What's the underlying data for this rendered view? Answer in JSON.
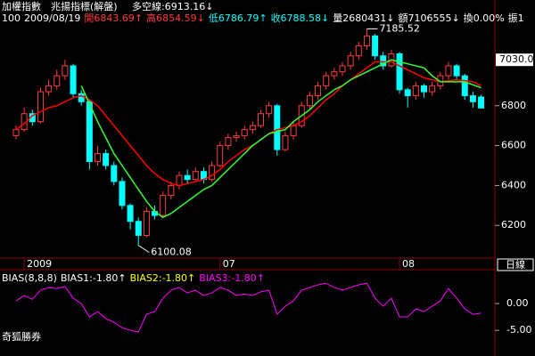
{
  "chart_data": [
    {
      "type": "candlestick",
      "title": "加權指數",
      "subtitle": "兆揚指標(解盤)",
      "annotation": "多空線:6913.16↓",
      "info": [
        {
          "text": "100",
          "color": "#ffffff"
        },
        {
          "text": "2009/08/19",
          "color": "#ffffff"
        },
        {
          "text": "開6843.69↑",
          "color": "#ff3c3c"
        },
        {
          "text": "高6854.59↓",
          "color": "#ff3c3c"
        },
        {
          "text": "低6786.79↑",
          "color": "#00ffff"
        },
        {
          "text": "收6788.58↓",
          "color": "#00ffff"
        },
        {
          "text": "量2680431↓",
          "color": "#ffffff"
        },
        {
          "text": "額7106555↓",
          "color": "#ffffff"
        },
        {
          "text": "換0.00%",
          "color": "#ffffff"
        },
        {
          "text": "振1",
          "color": "#ffffff"
        }
      ],
      "categories": [
        null,
        "2009",
        null,
        null,
        null,
        null,
        null,
        null,
        null,
        null,
        null,
        null,
        null,
        null,
        null,
        null,
        null,
        null,
        null,
        null,
        null,
        null,
        null,
        null,
        null,
        "07",
        null,
        null,
        null,
        null,
        null,
        null,
        null,
        null,
        null,
        null,
        null,
        null,
        null,
        null,
        null,
        null,
        null,
        null,
        null,
        null,
        null,
        "08",
        null,
        null,
        null,
        null,
        null,
        null,
        null,
        null,
        null,
        null
      ],
      "open": [
        6650,
        6680,
        6760,
        6720,
        6870,
        6900,
        6950,
        7000,
        6860,
        6820,
        6520,
        6560,
        6500,
        6420,
        6300,
        6220,
        6150,
        6270,
        6250,
        6350,
        6400,
        6450,
        6430,
        6470,
        6430,
        6500,
        6600,
        6640,
        6650,
        6680,
        6700,
        6760,
        6800,
        6580,
        6650,
        6700,
        6800,
        6850,
        6900,
        6950,
        6970,
        7000,
        7050,
        7100,
        7150,
        7050,
        7000,
        7060,
        6880,
        6850,
        6900,
        6870,
        6900,
        6950,
        7000,
        6950,
        6850,
        6843.69
      ],
      "high": [
        6700,
        6790,
        6780,
        6890,
        6930,
        6980,
        7030,
        7010,
        6880,
        6830,
        6600,
        6580,
        6520,
        6440,
        6310,
        6240,
        6290,
        6300,
        6370,
        6420,
        6470,
        6480,
        6490,
        6490,
        6520,
        6620,
        6660,
        6670,
        6700,
        6720,
        6780,
        6820,
        6810,
        6670,
        6720,
        6820,
        6870,
        6920,
        6970,
        6990,
        7020,
        7070,
        7120,
        7185.52,
        7160,
        7070,
        7080,
        7070,
        6890,
        6920,
        6910,
        6920,
        6970,
        7020,
        7010,
        6960,
        6870,
        6854.59
      ],
      "low": [
        6630,
        6670,
        6700,
        6710,
        6850,
        6880,
        6930,
        6840,
        6800,
        6480,
        6500,
        6480,
        6400,
        6280,
        6180,
        6100.08,
        6140,
        6230,
        6240,
        6330,
        6380,
        6410,
        6420,
        6410,
        6420,
        6490,
        6580,
        6620,
        6630,
        6660,
        6690,
        6740,
        6550,
        6570,
        6630,
        6690,
        6780,
        6830,
        6880,
        6930,
        6950,
        6980,
        7030,
        7080,
        7030,
        6980,
        6990,
        6860,
        6790,
        6830,
        6840,
        6850,
        6880,
        6930,
        6930,
        6830,
        6790,
        6786.79
      ],
      "close": [
        6680,
        6760,
        6720,
        6870,
        6900,
        6950,
        7000,
        6860,
        6820,
        6520,
        6560,
        6500,
        6420,
        6300,
        6220,
        6150,
        6270,
        6250,
        6350,
        6400,
        6450,
        6430,
        6470,
        6430,
        6500,
        6600,
        6640,
        6650,
        6680,
        6700,
        6760,
        6800,
        6580,
        6650,
        6700,
        6800,
        6850,
        6900,
        6950,
        6970,
        7000,
        7050,
        7100,
        7150,
        7050,
        7000,
        7060,
        6880,
        6850,
        6900,
        6870,
        6900,
        6950,
        7000,
        6950,
        6850,
        6820,
        6788.58
      ],
      "up_color": "#ff3c3c",
      "down_color": "#00ffff",
      "lines": [
        {
          "color": "#ff0000",
          "values": [
            6680,
            6710,
            6750,
            6770,
            6790,
            6800,
            6820,
            6840,
            6850,
            6830,
            6800,
            6750,
            6700,
            6650,
            6600,
            6550,
            6500,
            6460,
            6430,
            6410,
            6400,
            6410,
            6420,
            6430,
            6450,
            6480,
            6520,
            6550,
            6580,
            6600,
            6630,
            6660,
            6680,
            6690,
            6700,
            6720,
            6750,
            6790,
            6830,
            6860,
            6900,
            6930,
            6960,
            6990,
            7020,
            7020,
            7020,
            7000,
            6980,
            6960,
            6940,
            6930,
            6920,
            6925,
            6930,
            6925,
            6920,
            6900
          ]
        },
        {
          "color": "#33ff33",
          "values": [
            null,
            null,
            null,
            null,
            null,
            null,
            null,
            null,
            6900,
            6810,
            6720,
            6640,
            6560,
            6500,
            6440,
            6380,
            6320,
            6270,
            6240,
            6260,
            6290,
            6320,
            6350,
            6380,
            6400,
            6440,
            6480,
            6520,
            6560,
            6600,
            6630,
            6660,
            6670,
            6680,
            6720,
            6750,
            6780,
            6820,
            6850,
            6880,
            6900,
            6930,
            6950,
            6970,
            6990,
            7010,
            7030,
            7020,
            7010,
            7000,
            6990,
            6950,
            6920,
            6920,
            6920,
            6920,
            6905,
            6890
          ]
        }
      ],
      "ylim": [
        6036,
        7205
      ],
      "yticks": [
        6200,
        6400,
        6600,
        6800
      ],
      "cursor_label": {
        "value": 7030,
        "label": "7030.0"
      },
      "period_label": "日線"
    },
    {
      "type": "line",
      "title": "BIAS(8,8,8)",
      "legend": [
        {
          "text": "BIAS1:-1.80↑",
          "color": "#ffffff"
        },
        {
          "text": "BIAS2:-1.80↑",
          "color": "#ffff00"
        },
        {
          "text": "BIAS3:-1.80↑",
          "color": "#ff00ff"
        }
      ],
      "series": [
        {
          "color": "#ff00ff",
          "values": [
            0.5,
            1.5,
            0.8,
            2.5,
            3.0,
            2.8,
            3.2,
            1.0,
            0.0,
            -2.5,
            -1.5,
            -2.8,
            -3.5,
            -4.5,
            -5.0,
            -5.3,
            -2.0,
            -1.5,
            1.0,
            2.5,
            3.0,
            2.0,
            2.5,
            1.5,
            2.0,
            3.0,
            2.5,
            1.5,
            1.8,
            1.5,
            2.2,
            2.5,
            -2.0,
            -0.5,
            0.5,
            2.5,
            3.0,
            3.5,
            3.8,
            3.0,
            2.5,
            3.0,
            3.5,
            3.8,
            1.0,
            -0.5,
            1.0,
            -2.5,
            -2.5,
            -1.0,
            -1.5,
            -0.5,
            0.5,
            2.8,
            1.0,
            -1.0,
            -2.0,
            -1.8
          ]
        }
      ],
      "ylim": [
        -7.3,
        6
      ],
      "yticks": [
        {
          "value": 0,
          "label": "0.00"
        },
        {
          "value": -5,
          "label": "-5.00"
        }
      ],
      "footer": "奇狐勝券"
    }
  ]
}
